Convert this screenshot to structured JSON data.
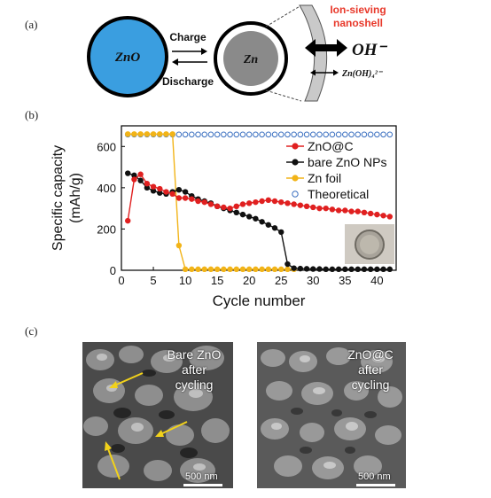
{
  "panels": {
    "a": "(a)",
    "b": "(b)",
    "c": "(c)"
  },
  "scheme": {
    "zno": "ZnO",
    "zn": "Zn",
    "charge": "Charge",
    "discharge": "Discharge",
    "shell_label_1": "Ion-sieving",
    "shell_label_2": "nanoshell",
    "oh": "OH⁻",
    "zincate": "Zn(OH)₄²⁻",
    "colors": {
      "zno_fill": "#3a9ee0",
      "zn_fill": "#8a8a8a",
      "shell_label": "#e8392b"
    }
  },
  "chart_data": {
    "type": "scatter",
    "xlabel": "Cycle number",
    "ylabel": "Specific capacity (mAh/g)",
    "xlim": [
      0,
      43
    ],
    "ylim": [
      0,
      700
    ],
    "xticks": [
      0,
      5,
      10,
      15,
      20,
      25,
      30,
      35,
      40
    ],
    "yticks": [
      0,
      200,
      400,
      600
    ],
    "legend_position": "top-right",
    "series": [
      {
        "name": "ZnO@C",
        "color": "#e02020",
        "marker": "filled-circle",
        "line": true,
        "x": [
          1,
          2,
          3,
          4,
          5,
          6,
          7,
          8,
          9,
          10,
          11,
          12,
          13,
          14,
          15,
          16,
          17,
          18,
          19,
          20,
          21,
          22,
          23,
          24,
          25,
          26,
          27,
          28,
          29,
          30,
          31,
          32,
          33,
          34,
          35,
          36,
          37,
          38,
          39,
          40,
          41,
          42
        ],
        "y": [
          240,
          440,
          465,
          420,
          405,
          395,
          380,
          370,
          350,
          350,
          345,
          335,
          330,
          320,
          310,
          305,
          300,
          310,
          320,
          325,
          330,
          335,
          340,
          335,
          330,
          325,
          320,
          315,
          310,
          305,
          300,
          300,
          295,
          290,
          290,
          285,
          285,
          280,
          275,
          270,
          265,
          260
        ]
      },
      {
        "name": "bare ZnO NPs",
        "color": "#111111",
        "marker": "filled-circle",
        "line": true,
        "x": [
          1,
          2,
          3,
          4,
          5,
          6,
          7,
          8,
          9,
          10,
          11,
          12,
          13,
          14,
          15,
          16,
          17,
          18,
          19,
          20,
          21,
          22,
          23,
          24,
          25,
          26,
          27,
          28,
          29,
          30,
          31,
          32,
          33,
          34,
          35,
          36,
          37,
          38,
          39,
          40,
          41,
          42
        ],
        "y": [
          470,
          460,
          435,
          400,
          385,
          375,
          370,
          380,
          390,
          380,
          360,
          345,
          335,
          325,
          310,
          300,
          290,
          280,
          270,
          260,
          250,
          235,
          220,
          205,
          185,
          30,
          10,
          8,
          7,
          6,
          6,
          5,
          5,
          5,
          5,
          5,
          5,
          5,
          5,
          5,
          5,
          5
        ]
      },
      {
        "name": "Zn foil",
        "color": "#f2b418",
        "marker": "filled-circle",
        "line": true,
        "x": [
          1,
          2,
          3,
          4,
          5,
          6,
          7,
          8,
          9,
          10,
          11,
          12,
          13,
          14,
          15,
          16,
          17,
          18,
          19,
          20,
          21,
          22,
          23,
          24,
          25,
          26,
          27
        ],
        "y": [
          660,
          660,
          660,
          660,
          660,
          660,
          660,
          660,
          120,
          5,
          5,
          5,
          5,
          5,
          5,
          5,
          5,
          5,
          5,
          5,
          5,
          5,
          5,
          5,
          5,
          5,
          5
        ]
      },
      {
        "name": "Theoretical",
        "color": "#3a6fc0",
        "marker": "open-circle",
        "line": false,
        "x": [
          1,
          2,
          3,
          4,
          5,
          6,
          7,
          8,
          9,
          10,
          11,
          12,
          13,
          14,
          15,
          16,
          17,
          18,
          19,
          20,
          21,
          22,
          23,
          24,
          25,
          26,
          27,
          28,
          29,
          30,
          31,
          32,
          33,
          34,
          35,
          36,
          37,
          38,
          39,
          40,
          41,
          42
        ],
        "y": [
          658,
          658,
          658,
          658,
          658,
          658,
          658,
          658,
          658,
          658,
          658,
          658,
          658,
          658,
          658,
          658,
          658,
          658,
          658,
          658,
          658,
          658,
          658,
          658,
          658,
          658,
          658,
          658,
          658,
          658,
          658,
          658,
          658,
          658,
          658,
          658,
          658,
          658,
          658,
          658,
          658,
          658
        ]
      }
    ]
  },
  "sem": [
    {
      "caption": "Bare ZnO after cycling",
      "lines": [
        "Bare ZnO",
        "after",
        "cycling"
      ],
      "scale": "500 nm"
    },
    {
      "caption": "ZnO@C after cycling",
      "lines": [
        "ZnO@C",
        "after",
        "cycling"
      ],
      "scale": "500 nm"
    }
  ]
}
